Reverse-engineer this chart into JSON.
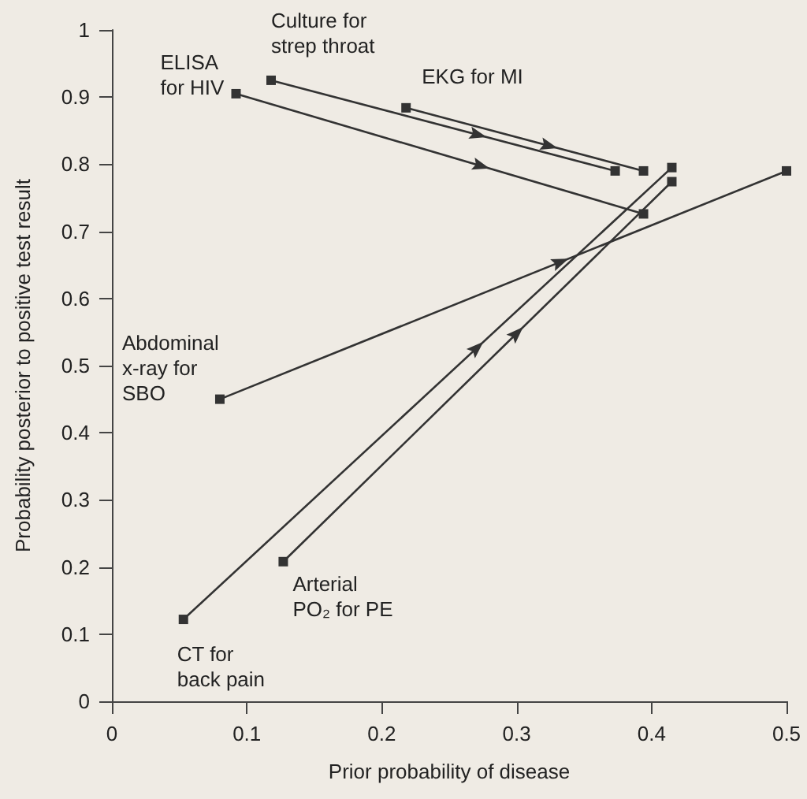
{
  "chart_data": {
    "type": "line",
    "xlabel": "Prior probability of disease",
    "ylabel": "Probability posterior to positive test result",
    "xlim": [
      0,
      0.5
    ],
    "xticks": [
      0,
      0.1,
      0.2,
      0.3,
      0.4,
      0.5
    ],
    "ylim": [
      0,
      1
    ],
    "yticks": [
      0,
      0.1,
      0.2,
      0.3,
      0.4,
      0.5,
      0.6,
      0.7,
      0.8,
      0.9,
      1
    ],
    "grid": false,
    "legend": false,
    "marker": "square",
    "line_style": "solid",
    "series": [
      {
        "name": "Culture for\nstrep throat",
        "color": "#333333",
        "x": [
          0.118,
          0.373
        ],
        "values": [
          0.925,
          0.79
        ]
      },
      {
        "name": "ELISA\nfor HIV",
        "color": "#333333",
        "x": [
          0.092,
          0.394
        ],
        "values": [
          0.905,
          0.726
        ]
      },
      {
        "name": "EKG for MI",
        "color": "#333333",
        "x": [
          0.218,
          0.394
        ],
        "values": [
          0.884,
          0.79
        ]
      },
      {
        "name": "Abdominal\nx-ray for\nSBO",
        "color": "#333333",
        "x": [
          0.08,
          0.5
        ],
        "values": [
          0.45,
          0.79
        ]
      },
      {
        "name": "CT for\nback pain",
        "color": "#333333",
        "x": [
          0.053,
          0.415
        ],
        "values": [
          0.122,
          0.795
        ]
      },
      {
        "name": "Arterial\nPO₂ for PE",
        "color": "#333333",
        "x": [
          0.127,
          0.415
        ],
        "values": [
          0.208,
          0.774
        ]
      }
    ]
  }
}
